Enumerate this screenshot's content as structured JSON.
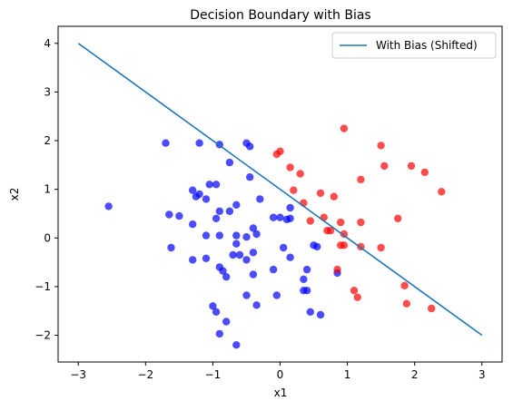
{
  "chart_data": {
    "type": "scatter",
    "title": "Decision Boundary with Bias",
    "xlabel": "x1",
    "ylabel": "x2",
    "xlim": [
      -3.3,
      3.3
    ],
    "ylim": [
      -2.55,
      4.35
    ],
    "xticks": [
      -3,
      -2,
      -1,
      0,
      1,
      2,
      3
    ],
    "yticks": [
      -2,
      -1,
      0,
      1,
      2,
      3,
      4
    ],
    "grid": false,
    "legend": {
      "position": "top-right"
    },
    "line": {
      "name": "With Bias (Shifted)",
      "color": "#1f77b4",
      "x": [
        -3,
        3
      ],
      "y": [
        4,
        -2
      ]
    },
    "series": [
      {
        "color": "#0000ff",
        "points": [
          [
            -2.55,
            0.65
          ],
          [
            -1.7,
            1.95
          ],
          [
            -1.2,
            1.95
          ],
          [
            -0.9,
            1.92
          ],
          [
            -0.5,
            1.95
          ],
          [
            -0.45,
            1.88
          ],
          [
            -0.75,
            1.55
          ],
          [
            -0.45,
            1.25
          ],
          [
            -1.05,
            1.1
          ],
          [
            -0.95,
            1.1
          ],
          [
            -1.3,
            0.98
          ],
          [
            -1.2,
            0.9
          ],
          [
            -1.25,
            0.85
          ],
          [
            -1.1,
            0.8
          ],
          [
            -0.75,
            0.55
          ],
          [
            -0.3,
            0.8
          ],
          [
            -0.65,
            0.68
          ],
          [
            -0.9,
            0.55
          ],
          [
            -1.65,
            0.48
          ],
          [
            -1.5,
            0.45
          ],
          [
            -0.95,
            0.4
          ],
          [
            -0.1,
            0.42
          ],
          [
            0.0,
            0.42
          ],
          [
            0.1,
            0.38
          ],
          [
            0.15,
            0.62
          ],
          [
            0.15,
            0.4
          ],
          [
            -1.3,
            0.28
          ],
          [
            -1.1,
            0.05
          ],
          [
            -0.9,
            0.05
          ],
          [
            -0.65,
            0.05
          ],
          [
            -0.5,
            0.02
          ],
          [
            -0.35,
            0.08
          ],
          [
            -0.4,
            0.2
          ],
          [
            -1.62,
            -0.2
          ],
          [
            -0.65,
            -0.12
          ],
          [
            -0.4,
            -0.3
          ],
          [
            0.05,
            -0.2
          ],
          [
            0.5,
            -0.15
          ],
          [
            0.55,
            -0.18
          ],
          [
            -0.7,
            -0.35
          ],
          [
            -0.6,
            -0.35
          ],
          [
            -1.3,
            -0.45
          ],
          [
            -1.1,
            -0.42
          ],
          [
            -0.5,
            -0.45
          ],
          [
            0.15,
            -0.4
          ],
          [
            -0.9,
            -0.6
          ],
          [
            -0.85,
            -0.68
          ],
          [
            -0.1,
            -0.65
          ],
          [
            -0.4,
            -0.75
          ],
          [
            0.4,
            -0.65
          ],
          [
            0.35,
            -0.85
          ],
          [
            -0.8,
            -0.8
          ],
          [
            0.85,
            -0.72
          ],
          [
            0.35,
            -1.08
          ],
          [
            0.4,
            -1.08
          ],
          [
            -0.5,
            -1.18
          ],
          [
            -0.05,
            -1.18
          ],
          [
            -0.35,
            -1.38
          ],
          [
            -1.0,
            -1.4
          ],
          [
            -0.95,
            -1.52
          ],
          [
            0.45,
            -1.52
          ],
          [
            0.6,
            -1.58
          ],
          [
            -0.8,
            -1.72
          ],
          [
            -0.9,
            -1.97
          ],
          [
            -0.65,
            -2.2
          ]
        ]
      },
      {
        "color": "#ff0000",
        "points": [
          [
            0.95,
            2.25
          ],
          [
            1.5,
            1.9
          ],
          [
            0.0,
            1.78
          ],
          [
            -0.05,
            1.72
          ],
          [
            0.15,
            1.45
          ],
          [
            1.55,
            1.48
          ],
          [
            1.95,
            1.48
          ],
          [
            2.15,
            1.35
          ],
          [
            0.3,
            1.32
          ],
          [
            1.2,
            1.2
          ],
          [
            0.2,
            0.98
          ],
          [
            0.6,
            0.92
          ],
          [
            0.8,
            0.85
          ],
          [
            2.4,
            0.95
          ],
          [
            0.35,
            0.72
          ],
          [
            0.65,
            0.42
          ],
          [
            0.45,
            0.35
          ],
          [
            0.9,
            0.32
          ],
          [
            1.2,
            0.32
          ],
          [
            1.75,
            0.4
          ],
          [
            0.75,
            0.15
          ],
          [
            0.7,
            0.15
          ],
          [
            0.95,
            0.08
          ],
          [
            0.9,
            -0.15
          ],
          [
            0.95,
            -0.15
          ],
          [
            1.2,
            -0.18
          ],
          [
            1.5,
            -0.2
          ],
          [
            0.85,
            -0.65
          ],
          [
            1.85,
            -0.98
          ],
          [
            1.1,
            -1.08
          ],
          [
            1.15,
            -1.22
          ],
          [
            1.88,
            -1.35
          ],
          [
            2.25,
            -1.45
          ]
        ]
      }
    ]
  }
}
